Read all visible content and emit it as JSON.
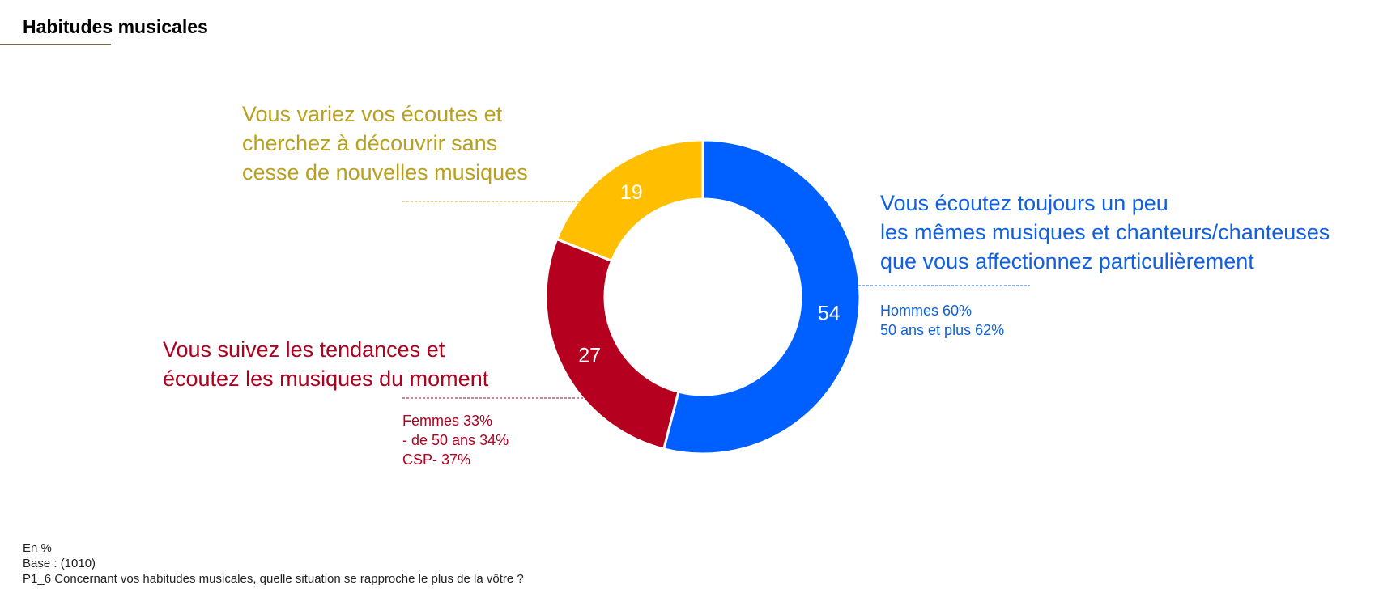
{
  "header": {
    "title": "Habitudes musicales"
  },
  "chart_data": {
    "type": "pie",
    "donut": true,
    "unit": "%",
    "slices": [
      {
        "value": 54,
        "color": "#0060FF",
        "label_lines": [
          "Vous écoutez toujours un peu",
          "les mêmes musiques et chanteurs/chanteuses",
          "que vous affectionnez particulièrement"
        ],
        "details": [
          "Hommes 60%",
          "50 ans et plus 62%"
        ]
      },
      {
        "value": 27,
        "color": "#B5001F",
        "label_lines": [
          "Vous suivez les tendances et",
          "écoutez les musiques du moment"
        ],
        "details": [
          "Femmes 33%",
          "- de 50 ans 34%",
          "CSP- 37%"
        ]
      },
      {
        "value": 19,
        "color": "#FFBF00",
        "label_lines": [
          "Vous variez vos écoutes et",
          "cherchez à découvrir sans",
          "cesse de nouvelles musiques"
        ],
        "details": []
      }
    ],
    "label_colors": {
      "blue": "#1060E0",
      "red": "#B00020",
      "yellow": "#B8A020"
    }
  },
  "footer": {
    "unit_note": "En %",
    "base": "Base : (1010)",
    "question": "P1_6 Concernant vos habitudes musicales, quelle situation se rapproche le plus de la vôtre ?"
  }
}
